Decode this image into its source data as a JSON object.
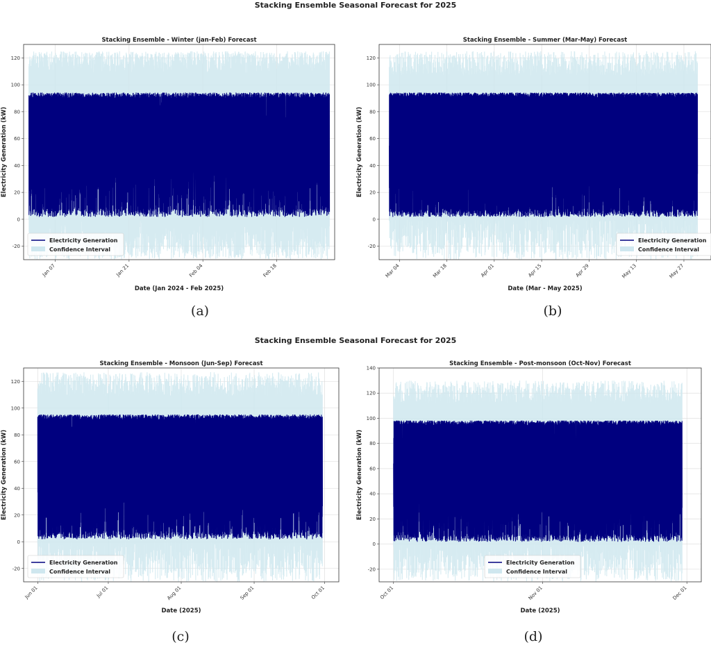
{
  "figures": [
    {
      "suptitle": "Stacking Ensemble Seasonal Forecast for 2025",
      "panels_row": [
        0,
        1
      ]
    },
    {
      "suptitle": "Stacking Ensemble Seasonal Forecast for 2025",
      "panels_row": [
        2,
        3
      ]
    }
  ],
  "captions": [
    "(a)",
    "(b)",
    "(c)",
    "(d)"
  ],
  "colors": {
    "line": "#00007f",
    "band": "#cfe7ef",
    "grid": "#d9d9d9",
    "axis": "#333333"
  },
  "chart_data": [
    {
      "type": "line",
      "title": "Stacking Ensemble - Winter (jan-Feb) Forecast",
      "xlabel": "Date (Jan 2024 - Feb 2025)",
      "ylabel": "Electricity Generation (kW)",
      "ylim": [
        -30,
        130
      ],
      "yticks": [
        -20,
        0,
        20,
        40,
        60,
        80,
        100,
        120
      ],
      "xlim": [
        "2025-01-01",
        "2025-03-01"
      ],
      "xticks": [
        {
          "date": "2025-01-07",
          "label": "Jan 07"
        },
        {
          "date": "2025-01-21",
          "label": "Jan 21"
        },
        {
          "date": "2025-02-04",
          "label": "Feb 04"
        },
        {
          "date": "2025-02-18",
          "label": "Feb 18"
        }
      ],
      "data_range": [
        "2025-01-02",
        "2025-02-28"
      ],
      "series": [
        {
          "name": "Electricity Generation",
          "kind": "line",
          "min": 2,
          "max": 95
        },
        {
          "name": "Confidence Interval",
          "kind": "band",
          "lower_min": -30,
          "upper_max": 125
        }
      ],
      "legend": "lower-left",
      "grid": true
    },
    {
      "type": "line",
      "title": "Stacking Ensemble - Summer (Mar-May) Forecast",
      "xlabel": "Date (Mar - May 2025)",
      "ylabel": "Electricity Generation (kW)",
      "ylim": [
        -30,
        130
      ],
      "yticks": [
        -20,
        0,
        20,
        40,
        60,
        80,
        100,
        120
      ],
      "xlim": [
        "2025-02-26",
        "2025-06-04"
      ],
      "xticks": [
        {
          "date": "2025-03-04",
          "label": "Mar 04"
        },
        {
          "date": "2025-03-18",
          "label": "Mar 18"
        },
        {
          "date": "2025-04-01",
          "label": "Apr 01"
        },
        {
          "date": "2025-04-15",
          "label": "Apr 15"
        },
        {
          "date": "2025-04-29",
          "label": "Apr 29"
        },
        {
          "date": "2025-05-13",
          "label": "May 13"
        },
        {
          "date": "2025-05-27",
          "label": "May 27"
        }
      ],
      "data_range": [
        "2025-03-01",
        "2025-05-31"
      ],
      "series": [
        {
          "name": "Electricity Generation",
          "kind": "line",
          "min": 2,
          "max": 95
        },
        {
          "name": "Confidence Interval",
          "kind": "band",
          "lower_min": -30,
          "upper_max": 125
        }
      ],
      "legend": "lower-right",
      "grid": true
    },
    {
      "type": "line",
      "title": "Stacking Ensemble - Monsoon (Jun-Sep) Forecast",
      "xlabel": "Date (2025)",
      "ylabel": "Electricity Generation (kW)",
      "ylim": [
        -30,
        130
      ],
      "yticks": [
        -20,
        0,
        20,
        40,
        60,
        80,
        100,
        120
      ],
      "xlim": [
        "2025-05-26",
        "2025-10-07"
      ],
      "xticks": [
        {
          "date": "2025-06-01",
          "label": "Jun 01"
        },
        {
          "date": "2025-07-01",
          "label": "Jul 01"
        },
        {
          "date": "2025-08-01",
          "label": "Aug 01"
        },
        {
          "date": "2025-09-01",
          "label": "Sep 01"
        },
        {
          "date": "2025-10-01",
          "label": "Oct 01"
        }
      ],
      "data_range": [
        "2025-06-01",
        "2025-09-30"
      ],
      "series": [
        {
          "name": "Electricity Generation",
          "kind": "line",
          "min": 2,
          "max": 96
        },
        {
          "name": "Confidence Interval",
          "kind": "band",
          "lower_min": -30,
          "upper_max": 127
        }
      ],
      "legend": "lower-left",
      "grid": true
    },
    {
      "type": "line",
      "title": "Stacking Ensemble - Post-monsoon (Oct-Nov) Forecast",
      "xlabel": "Date (2025)",
      "ylabel": "Electricity Generation (kW)",
      "ylim": [
        -30,
        140
      ],
      "yticks": [
        -20,
        0,
        20,
        40,
        60,
        80,
        100,
        120,
        140
      ],
      "xlim": [
        "2025-09-28",
        "2025-12-04"
      ],
      "xticks": [
        {
          "date": "2025-10-01",
          "label": "Oct 01"
        },
        {
          "date": "2025-11-01",
          "label": "Nov 01"
        },
        {
          "date": "2025-12-01",
          "label": "Dec 01"
        }
      ],
      "data_range": [
        "2025-10-01",
        "2025-11-30"
      ],
      "series": [
        {
          "name": "Electricity Generation",
          "kind": "line",
          "min": 2,
          "max": 99
        },
        {
          "name": "Confidence Interval",
          "kind": "band",
          "lower_min": -30,
          "upper_max": 130
        }
      ],
      "legend": "lower-center",
      "grid": true
    }
  ]
}
